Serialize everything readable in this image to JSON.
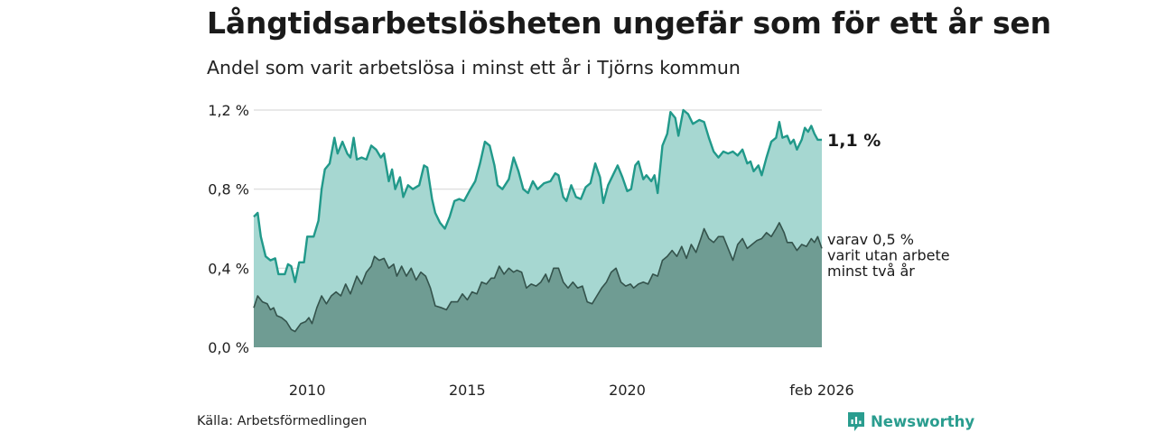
{
  "title": "Långtidsarbetslösheten ungefär som för ett år sen",
  "subtitle": "Andel som varit arbetslösa i minst ett år i Tjörns kommun",
  "source": "Källa: Arbetsförmedlingen",
  "brand": "Newsworthy",
  "colors": {
    "upper_line": "#21998a",
    "upper_fill": "#a6d7d1",
    "lower_line": "#34534c",
    "lower_fill": "#6f9c93",
    "grid": "#d9d9d9",
    "brand": "#2a9d8f"
  },
  "chart_data": {
    "type": "area",
    "title": "Långtidsarbetslösheten ungefär som för ett år sen",
    "subtitle": "Andel som varit arbetslösa i minst ett år i Tjörns kommun",
    "ylabel": "",
    "xlabel": "",
    "ylim": [
      0,
      1.2
    ],
    "xlim": [
      2008.33,
      2026.08
    ],
    "yticks": [
      {
        "value": 0.0,
        "label": "0,0 %"
      },
      {
        "value": 0.4,
        "label": "0,4 %"
      },
      {
        "value": 0.8,
        "label": "0,8 %"
      },
      {
        "value": 1.2,
        "label": "1,2 %"
      }
    ],
    "xticks": [
      {
        "value": 2010,
        "label": "2010"
      },
      {
        "value": 2015,
        "label": "2015"
      },
      {
        "value": 2020,
        "label": "2020"
      },
      {
        "value": 2026.08,
        "label": "feb 2026"
      }
    ],
    "series": [
      {
        "name": "Minst ett år",
        "end_label": "1,1 %",
        "points": [
          [
            2008.33,
            0.66
          ],
          [
            2008.45,
            0.68
          ],
          [
            2008.55,
            0.56
          ],
          [
            2008.7,
            0.46
          ],
          [
            2008.85,
            0.44
          ],
          [
            2009.0,
            0.45
          ],
          [
            2009.1,
            0.37
          ],
          [
            2009.3,
            0.37
          ],
          [
            2009.4,
            0.42
          ],
          [
            2009.5,
            0.41
          ],
          [
            2009.62,
            0.33
          ],
          [
            2009.75,
            0.43
          ],
          [
            2009.9,
            0.43
          ],
          [
            2010.0,
            0.56
          ],
          [
            2010.2,
            0.56
          ],
          [
            2010.35,
            0.64
          ],
          [
            2010.45,
            0.8
          ],
          [
            2010.55,
            0.9
          ],
          [
            2010.7,
            0.93
          ],
          [
            2010.85,
            1.06
          ],
          [
            2010.95,
            0.98
          ],
          [
            2011.1,
            1.04
          ],
          [
            2011.25,
            0.98
          ],
          [
            2011.35,
            0.96
          ],
          [
            2011.45,
            1.06
          ],
          [
            2011.55,
            0.95
          ],
          [
            2011.7,
            0.96
          ],
          [
            2011.85,
            0.95
          ],
          [
            2012.0,
            1.02
          ],
          [
            2012.15,
            1.0
          ],
          [
            2012.3,
            0.96
          ],
          [
            2012.4,
            0.98
          ],
          [
            2012.55,
            0.84
          ],
          [
            2012.65,
            0.9
          ],
          [
            2012.75,
            0.8
          ],
          [
            2012.9,
            0.86
          ],
          [
            2013.0,
            0.76
          ],
          [
            2013.15,
            0.82
          ],
          [
            2013.3,
            0.8
          ],
          [
            2013.5,
            0.82
          ],
          [
            2013.65,
            0.92
          ],
          [
            2013.75,
            0.91
          ],
          [
            2013.9,
            0.75
          ],
          [
            2014.0,
            0.68
          ],
          [
            2014.15,
            0.63
          ],
          [
            2014.3,
            0.6
          ],
          [
            2014.45,
            0.66
          ],
          [
            2014.6,
            0.74
          ],
          [
            2014.75,
            0.75
          ],
          [
            2014.9,
            0.74
          ],
          [
            2015.1,
            0.8
          ],
          [
            2015.25,
            0.84
          ],
          [
            2015.4,
            0.93
          ],
          [
            2015.55,
            1.04
          ],
          [
            2015.7,
            1.02
          ],
          [
            2015.85,
            0.92
          ],
          [
            2015.95,
            0.82
          ],
          [
            2016.1,
            0.8
          ],
          [
            2016.3,
            0.85
          ],
          [
            2016.45,
            0.96
          ],
          [
            2016.6,
            0.89
          ],
          [
            2016.75,
            0.8
          ],
          [
            2016.9,
            0.78
          ],
          [
            2017.05,
            0.84
          ],
          [
            2017.2,
            0.8
          ],
          [
            2017.4,
            0.83
          ],
          [
            2017.6,
            0.84
          ],
          [
            2017.75,
            0.88
          ],
          [
            2017.85,
            0.87
          ],
          [
            2018.0,
            0.76
          ],
          [
            2018.1,
            0.74
          ],
          [
            2018.25,
            0.82
          ],
          [
            2018.4,
            0.76
          ],
          [
            2018.55,
            0.75
          ],
          [
            2018.7,
            0.81
          ],
          [
            2018.85,
            0.83
          ],
          [
            2019.0,
            0.93
          ],
          [
            2019.15,
            0.86
          ],
          [
            2019.25,
            0.73
          ],
          [
            2019.4,
            0.82
          ],
          [
            2019.55,
            0.87
          ],
          [
            2019.7,
            0.92
          ],
          [
            2019.85,
            0.86
          ],
          [
            2020.0,
            0.79
          ],
          [
            2020.12,
            0.8
          ],
          [
            2020.25,
            0.92
          ],
          [
            2020.35,
            0.94
          ],
          [
            2020.5,
            0.85
          ],
          [
            2020.6,
            0.87
          ],
          [
            2020.75,
            0.84
          ],
          [
            2020.85,
            0.87
          ],
          [
            2020.95,
            0.78
          ],
          [
            2021.1,
            1.02
          ],
          [
            2021.25,
            1.08
          ],
          [
            2021.35,
            1.19
          ],
          [
            2021.5,
            1.16
          ],
          [
            2021.6,
            1.07
          ],
          [
            2021.75,
            1.2
          ],
          [
            2021.9,
            1.18
          ],
          [
            2022.05,
            1.13
          ],
          [
            2022.25,
            1.15
          ],
          [
            2022.4,
            1.14
          ],
          [
            2022.55,
            1.06
          ],
          [
            2022.7,
            0.99
          ],
          [
            2022.85,
            0.96
          ],
          [
            2023.0,
            0.99
          ],
          [
            2023.15,
            0.98
          ],
          [
            2023.3,
            0.99
          ],
          [
            2023.45,
            0.97
          ],
          [
            2023.6,
            1.0
          ],
          [
            2023.75,
            0.93
          ],
          [
            2023.85,
            0.94
          ],
          [
            2023.95,
            0.89
          ],
          [
            2024.1,
            0.92
          ],
          [
            2024.2,
            0.87
          ],
          [
            2024.35,
            0.96
          ],
          [
            2024.5,
            1.04
          ],
          [
            2024.65,
            1.06
          ],
          [
            2024.75,
            1.14
          ],
          [
            2024.85,
            1.06
          ],
          [
            2025.0,
            1.07
          ],
          [
            2025.1,
            1.03
          ],
          [
            2025.2,
            1.05
          ],
          [
            2025.3,
            1.0
          ],
          [
            2025.45,
            1.05
          ],
          [
            2025.55,
            1.11
          ],
          [
            2025.65,
            1.09
          ],
          [
            2025.75,
            1.12
          ],
          [
            2025.85,
            1.08
          ],
          [
            2025.95,
            1.05
          ],
          [
            2026.08,
            1.05
          ]
        ]
      },
      {
        "name": "Varit utan arbete minst två år",
        "end_label_lines": [
          "varav 0,5 %",
          "varit utan arbete",
          "minst två år"
        ],
        "points": [
          [
            2008.33,
            0.2
          ],
          [
            2008.45,
            0.26
          ],
          [
            2008.6,
            0.23
          ],
          [
            2008.75,
            0.22
          ],
          [
            2008.85,
            0.19
          ],
          [
            2008.95,
            0.2
          ],
          [
            2009.05,
            0.16
          ],
          [
            2009.2,
            0.15
          ],
          [
            2009.35,
            0.13
          ],
          [
            2009.5,
            0.09
          ],
          [
            2009.62,
            0.08
          ],
          [
            2009.8,
            0.12
          ],
          [
            2009.95,
            0.13
          ],
          [
            2010.05,
            0.15
          ],
          [
            2010.15,
            0.12
          ],
          [
            2010.3,
            0.2
          ],
          [
            2010.45,
            0.26
          ],
          [
            2010.6,
            0.22
          ],
          [
            2010.75,
            0.26
          ],
          [
            2010.9,
            0.28
          ],
          [
            2011.05,
            0.26
          ],
          [
            2011.2,
            0.32
          ],
          [
            2011.35,
            0.27
          ],
          [
            2011.55,
            0.36
          ],
          [
            2011.7,
            0.32
          ],
          [
            2011.85,
            0.38
          ],
          [
            2012.0,
            0.41
          ],
          [
            2012.1,
            0.46
          ],
          [
            2012.25,
            0.44
          ],
          [
            2012.4,
            0.45
          ],
          [
            2012.55,
            0.4
          ],
          [
            2012.7,
            0.42
          ],
          [
            2012.8,
            0.36
          ],
          [
            2012.95,
            0.41
          ],
          [
            2013.1,
            0.36
          ],
          [
            2013.25,
            0.4
          ],
          [
            2013.4,
            0.34
          ],
          [
            2013.55,
            0.38
          ],
          [
            2013.7,
            0.36
          ],
          [
            2013.85,
            0.3
          ],
          [
            2014.0,
            0.21
          ],
          [
            2014.2,
            0.2
          ],
          [
            2014.35,
            0.19
          ],
          [
            2014.5,
            0.23
          ],
          [
            2014.7,
            0.23
          ],
          [
            2014.85,
            0.27
          ],
          [
            2015.0,
            0.24
          ],
          [
            2015.15,
            0.28
          ],
          [
            2015.3,
            0.27
          ],
          [
            2015.45,
            0.33
          ],
          [
            2015.6,
            0.32
          ],
          [
            2015.75,
            0.35
          ],
          [
            2015.85,
            0.35
          ],
          [
            2016.0,
            0.41
          ],
          [
            2016.15,
            0.37
          ],
          [
            2016.3,
            0.4
          ],
          [
            2016.45,
            0.38
          ],
          [
            2016.55,
            0.39
          ],
          [
            2016.7,
            0.38
          ],
          [
            2016.85,
            0.3
          ],
          [
            2017.0,
            0.32
          ],
          [
            2017.15,
            0.31
          ],
          [
            2017.3,
            0.33
          ],
          [
            2017.45,
            0.37
          ],
          [
            2017.55,
            0.33
          ],
          [
            2017.7,
            0.4
          ],
          [
            2017.85,
            0.4
          ],
          [
            2018.0,
            0.33
          ],
          [
            2018.15,
            0.3
          ],
          [
            2018.3,
            0.33
          ],
          [
            2018.45,
            0.3
          ],
          [
            2018.6,
            0.31
          ],
          [
            2018.75,
            0.23
          ],
          [
            2018.9,
            0.22
          ],
          [
            2019.05,
            0.26
          ],
          [
            2019.2,
            0.3
          ],
          [
            2019.35,
            0.33
          ],
          [
            2019.5,
            0.38
          ],
          [
            2019.65,
            0.4
          ],
          [
            2019.8,
            0.33
          ],
          [
            2019.95,
            0.31
          ],
          [
            2020.1,
            0.32
          ],
          [
            2020.2,
            0.3
          ],
          [
            2020.35,
            0.32
          ],
          [
            2020.5,
            0.33
          ],
          [
            2020.65,
            0.32
          ],
          [
            2020.8,
            0.37
          ],
          [
            2020.95,
            0.36
          ],
          [
            2021.1,
            0.44
          ],
          [
            2021.25,
            0.46
          ],
          [
            2021.4,
            0.49
          ],
          [
            2021.55,
            0.46
          ],
          [
            2021.7,
            0.51
          ],
          [
            2021.85,
            0.45
          ],
          [
            2022.0,
            0.52
          ],
          [
            2022.15,
            0.48
          ],
          [
            2022.3,
            0.55
          ],
          [
            2022.4,
            0.6
          ],
          [
            2022.55,
            0.55
          ],
          [
            2022.7,
            0.53
          ],
          [
            2022.85,
            0.56
          ],
          [
            2023.0,
            0.56
          ],
          [
            2023.15,
            0.5
          ],
          [
            2023.3,
            0.44
          ],
          [
            2023.45,
            0.52
          ],
          [
            2023.6,
            0.55
          ],
          [
            2023.75,
            0.5
          ],
          [
            2023.9,
            0.52
          ],
          [
            2024.05,
            0.54
          ],
          [
            2024.2,
            0.55
          ],
          [
            2024.35,
            0.58
          ],
          [
            2024.5,
            0.56
          ],
          [
            2024.65,
            0.6
          ],
          [
            2024.75,
            0.63
          ],
          [
            2024.9,
            0.58
          ],
          [
            2025.0,
            0.53
          ],
          [
            2025.15,
            0.53
          ],
          [
            2025.3,
            0.49
          ],
          [
            2025.45,
            0.52
          ],
          [
            2025.6,
            0.51
          ],
          [
            2025.75,
            0.55
          ],
          [
            2025.85,
            0.53
          ],
          [
            2025.95,
            0.56
          ],
          [
            2026.08,
            0.5
          ]
        ]
      }
    ]
  }
}
